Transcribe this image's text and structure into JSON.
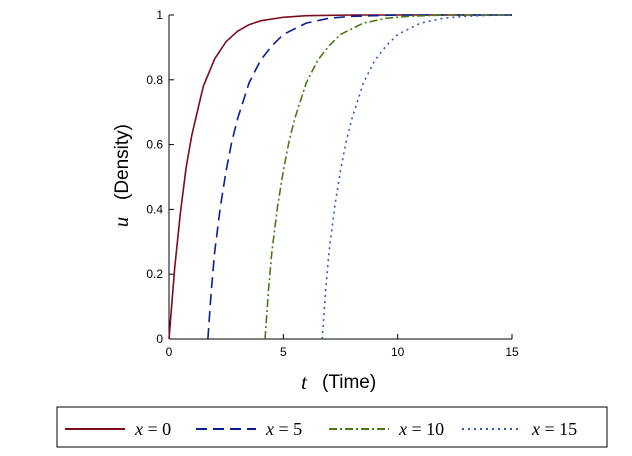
{
  "chart_data": {
    "type": "line",
    "title": "",
    "xlabel": {
      "symbol": "t",
      "text": "(Time)"
    },
    "ylabel": {
      "symbol": "u",
      "text": "(Density)"
    },
    "xlim": [
      0,
      15
    ],
    "ylim": [
      0,
      1
    ],
    "xticks": [
      0,
      5,
      10,
      15
    ],
    "yticks": [
      0,
      0.2,
      0.4,
      0.6,
      0.8,
      1
    ],
    "xtick_labels": [
      "0",
      "5",
      "10",
      "15"
    ],
    "ytick_labels": [
      "0",
      "0.2",
      "0.4",
      "0.6",
      "0.8",
      "1"
    ],
    "grid": false,
    "legend_position": "bottom",
    "series": [
      {
        "name": "x = 0",
        "label_var": "x",
        "label_rest": " = 0",
        "color": "#7a0c1e",
        "style": "solid",
        "x": [
          0,
          0.25,
          0.5,
          0.75,
          1,
          1.5,
          2,
          2.5,
          3,
          3.5,
          4,
          5,
          6,
          8,
          10,
          12,
          15
        ],
        "y": [
          0,
          0.22,
          0.39,
          0.53,
          0.63,
          0.78,
          0.865,
          0.918,
          0.95,
          0.97,
          0.982,
          0.993,
          0.998,
          1,
          1,
          1,
          1
        ]
      },
      {
        "name": "x = 5",
        "label_var": "x",
        "label_rest": " = 5",
        "color": "#0a1f8f",
        "style": "dashed",
        "x": [
          1.7,
          1.85,
          2,
          2.25,
          2.5,
          2.75,
          3,
          3.5,
          4,
          4.5,
          5,
          6,
          7,
          8,
          10,
          12,
          15
        ],
        "y": [
          0,
          0.15,
          0.27,
          0.41,
          0.52,
          0.61,
          0.68,
          0.79,
          0.86,
          0.905,
          0.94,
          0.975,
          0.99,
          0.996,
          1,
          1,
          1
        ]
      },
      {
        "name": "x = 10",
        "label_var": "x",
        "label_rest": " = 10",
        "color": "#4a7a14",
        "style": "dashdot",
        "x": [
          4.2,
          4.35,
          4.5,
          4.75,
          5,
          5.25,
          5.5,
          6,
          6.5,
          7,
          7.5,
          8.5,
          9.5,
          10.5,
          12,
          15
        ],
        "y": [
          0,
          0.15,
          0.27,
          0.41,
          0.52,
          0.61,
          0.68,
          0.79,
          0.86,
          0.905,
          0.94,
          0.975,
          0.99,
          0.996,
          1,
          1
        ]
      },
      {
        "name": "x = 15",
        "label_var": "x",
        "label_rest": " = 15",
        "color": "#3355bb",
        "style": "dotted",
        "x": [
          6.7,
          6.85,
          7,
          7.25,
          7.5,
          7.75,
          8,
          8.5,
          9,
          9.5,
          10,
          11,
          12,
          13,
          14,
          15
        ],
        "y": [
          0,
          0.15,
          0.27,
          0.41,
          0.52,
          0.61,
          0.68,
          0.79,
          0.86,
          0.905,
          0.94,
          0.975,
          0.99,
          0.996,
          0.999,
          1
        ]
      }
    ]
  }
}
